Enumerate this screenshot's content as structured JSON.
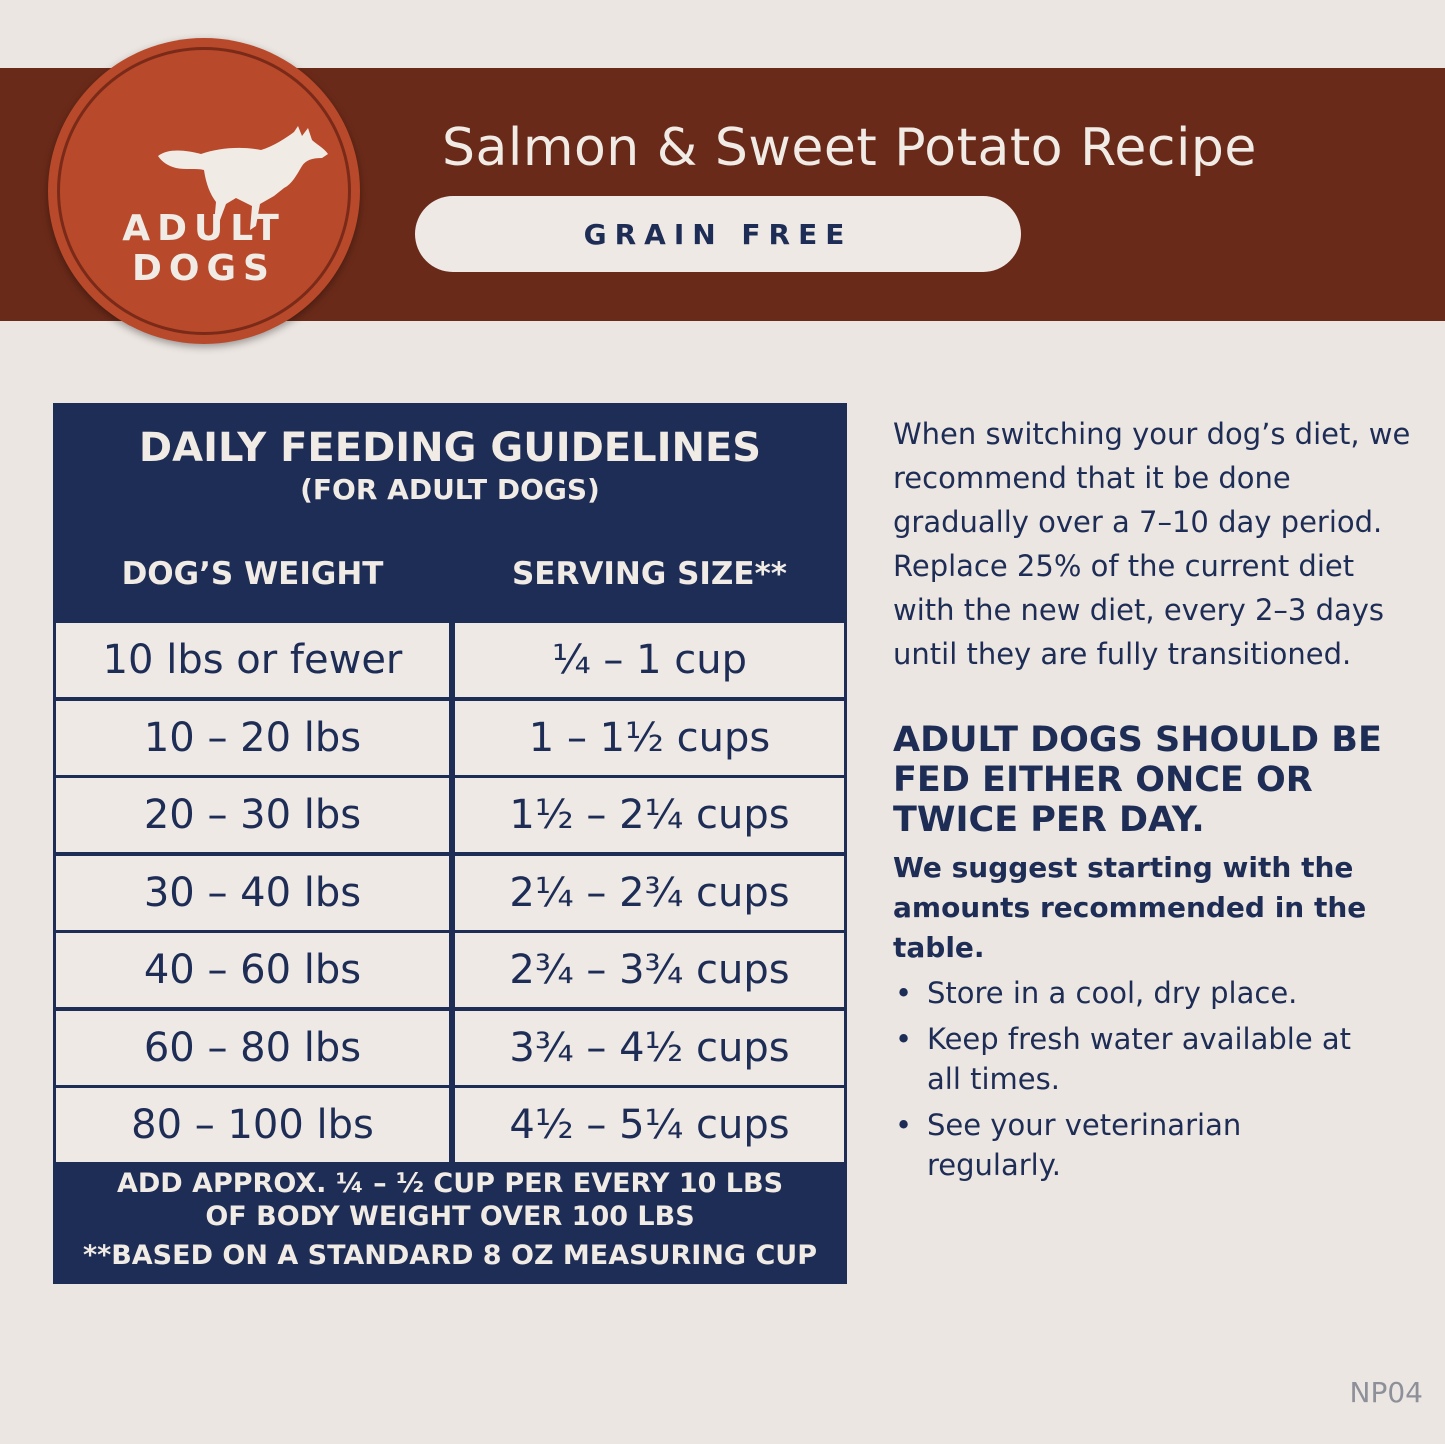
{
  "colors": {
    "banner": "#6a2a19",
    "badge": "#b8492b",
    "navy": "#1e2d55",
    "background": "#ece6e2"
  },
  "badge": {
    "icon": "running-dog-icon",
    "line1": "ADULT",
    "line2": "DOGS"
  },
  "header": {
    "title": "Salmon & Sweet Potato Recipe",
    "tag": "GRAIN FREE"
  },
  "table": {
    "title": "DAILY FEEDING GUIDELINES",
    "subtitle": "(FOR ADULT DOGS)",
    "columns": [
      "DOG’S WEIGHT",
      "SERVING SIZE**"
    ],
    "rows": [
      [
        "10 lbs or fewer",
        "¼ – 1 cup"
      ],
      [
        "10 – 20 lbs",
        "1 – 1½ cups"
      ],
      [
        "20 – 30 lbs",
        "1½ – 2¼ cups"
      ],
      [
        "30 – 40 lbs",
        "2¼ – 2¾ cups"
      ],
      [
        "40 – 60 lbs",
        "2¾ – 3¾ cups"
      ],
      [
        "60 – 80 lbs",
        "3¾ – 4½ cups"
      ],
      [
        "80 – 100 lbs",
        "4½ – 5¼ cups"
      ]
    ],
    "footer1": "ADD APPROX. ¼ – ½ CUP PER EVERY 10 LBS",
    "footer2": "OF BODY WEIGHT OVER 100 LBS",
    "footer3": "**BASED ON A STANDARD 8 OZ MEASURING CUP"
  },
  "side": {
    "transition": "When switching your dog’s diet, we recommend that it be done gradually over a 7–10 day period. Replace 25% of the current diet with the new diet, every 2–3 days until they are fully transitioned.",
    "heading": "ADULT DOGS SHOULD BE FED EITHER ONCE OR TWICE PER DAY.",
    "suggest": "We suggest starting with the amounts recommended in the table.",
    "bullets": [
      "Store in a cool, dry place.",
      "Keep fresh water available at all times.",
      "See your veterinarian regularly."
    ]
  },
  "code": "NP04"
}
